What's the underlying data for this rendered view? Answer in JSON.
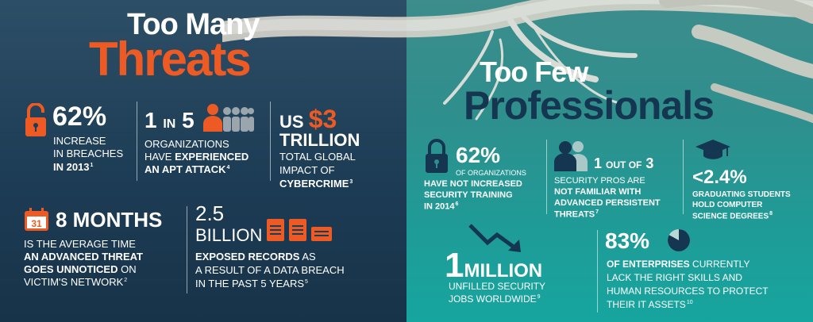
{
  "colors": {
    "accent_orange": "#ee5a24",
    "navy": "#153650",
    "white": "#ffffff",
    "teal": "#2f8f8d"
  },
  "left": {
    "title_line1": "Too Many",
    "title_line2": "Threats",
    "stat1": {
      "icon": "open-padlock-icon",
      "value": "62%",
      "line1": "INCREASE",
      "line2": "IN BREACHES",
      "line3": "IN 2013",
      "footnote": "1"
    },
    "stat2": {
      "icon": "people-row-icon",
      "value1": "1",
      "in": "IN",
      "value2": "5",
      "line1": "ORGANIZATIONS",
      "line2_pre": "HAVE ",
      "line2_bold": "EXPERIENCED",
      "line3": "AN APT ATTACK",
      "footnote": "4"
    },
    "stat3": {
      "us": "US",
      "value": "$3",
      "unit": "TRILLION",
      "line1": "TOTAL GLOBAL",
      "line2": "IMPACT OF",
      "line3": "CYBERCRIME",
      "footnote": "3"
    },
    "stat4": {
      "icon": "calendar-icon",
      "calendar_day": "31",
      "value": "8 MONTHS",
      "line1": "IS THE AVERAGE TIME",
      "line2": "AN ADVANCED THREAT",
      "line3_bold": "GOES UNNOTICED",
      "line3_rest": " ON",
      "line4": "VICTIM'S NETWORK",
      "footnote": "2"
    },
    "stat5": {
      "icon": "documents-icon",
      "value": "2.5",
      "unit": "BILLION",
      "line1_bold": "EXPOSED RECORDS",
      "line1_rest": " AS",
      "line2": "A RESULT OF A DATA BREACH",
      "line3": "IN THE PAST 5 YEARS",
      "footnote": "5"
    }
  },
  "right": {
    "title_line1": "Too Few",
    "title_line2": "Professionals",
    "stat1": {
      "icon": "closed-padlock-icon",
      "value": "62%",
      "sub": "OF ORGANIZATIONS",
      "line1": "HAVE NOT INCREASED",
      "line2": "SECURITY TRAINING",
      "line3": "IN 2014",
      "footnote": "6"
    },
    "stat2": {
      "icon": "people-pair-icon",
      "value": "1",
      "out_of": "OUT OF",
      "value2": "3",
      "line1": "SECURITY PROS ARE",
      "line2": "NOT FAMILIAR WITH",
      "line3": "ADVANCED PERSISTENT",
      "line4": "THREATS",
      "footnote": "7"
    },
    "stat3": {
      "icon": "graduation-cap-icon",
      "value": "<2.4%",
      "line1": "GRADUATING STUDENTS",
      "line2": "HOLD COMPUTER",
      "line3": "SCIENCE DEGREES",
      "footnote": "8"
    },
    "stat4": {
      "icon": "trend-down-arrow-icon",
      "value": "1",
      "unit": "MILLION",
      "line1": "UNFILLED SECURITY",
      "line2": "JOBS WORLDWIDE",
      "footnote": "9"
    },
    "stat5": {
      "icon": "pie-chart-icon",
      "value": "83%",
      "pie_fraction": 0.83,
      "line1_bold": "OF ENTERPRISES",
      "line1_rest": " CURRENTLY",
      "line2": "LACK THE RIGHT SKILLS AND",
      "line3": "HUMAN RESOURCES TO PROTECT",
      "line4": "THEIR IT ASSETS",
      "footnote": "10"
    }
  }
}
